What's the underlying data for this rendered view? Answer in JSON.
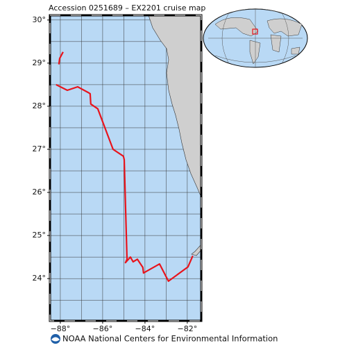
{
  "title": "Accession 0251689 – EX2201 cruise map",
  "footer": "NOAA National Centers for Environmental Information",
  "map": {
    "xlim": [
      -88.49,
      -81.34
    ],
    "ylim": [
      23.02,
      30.11
    ],
    "xticks": [
      {
        "value": -88,
        "label": "−88°"
      },
      {
        "value": -86,
        "label": "−86°"
      },
      {
        "value": -84,
        "label": "−84°"
      },
      {
        "value": -82,
        "label": "−82°"
      }
    ],
    "yticks": [
      {
        "value": 24,
        "label": "24°"
      },
      {
        "value": 25,
        "label": "25°"
      },
      {
        "value": 26,
        "label": "26°"
      },
      {
        "value": 27,
        "label": "27°"
      },
      {
        "value": 28,
        "label": "28°"
      },
      {
        "value": 29,
        "label": "29°"
      },
      {
        "value": 30,
        "label": "30°"
      }
    ],
    "lon_grid": [
      -88,
      -87,
      -86,
      -85,
      -84,
      -83,
      -82
    ],
    "lat_grid": [
      23.5,
      24,
      24.5,
      25,
      25.5,
      26,
      26.5,
      27,
      27.5,
      28,
      28.5,
      29,
      29.5,
      30
    ],
    "track": {
      "color": "#e8141c",
      "lon": [
        -87.87,
        -88.03,
        -88.07,
        null,
        -88.2,
        -87.67,
        -87.18,
        -86.69,
        -86.59,
        -86.56,
        -86.23,
        -85.51,
        -85.02,
        -84.98,
        -84.85,
        -84.92,
        -84.69,
        -84.56,
        -84.36,
        -84.1,
        -84.07,
        -83.31,
        -82.89,
        -81.97,
        -81.74
      ],
      "lat": [
        29.26,
        29.11,
        28.97,
        null,
        28.5,
        28.37,
        28.45,
        28.32,
        28.29,
        28.05,
        27.94,
        27.0,
        26.84,
        26.76,
        24.45,
        24.37,
        24.5,
        24.39,
        24.45,
        24.26,
        24.13,
        24.34,
        23.94,
        24.27,
        24.53
      ]
    }
  }
}
